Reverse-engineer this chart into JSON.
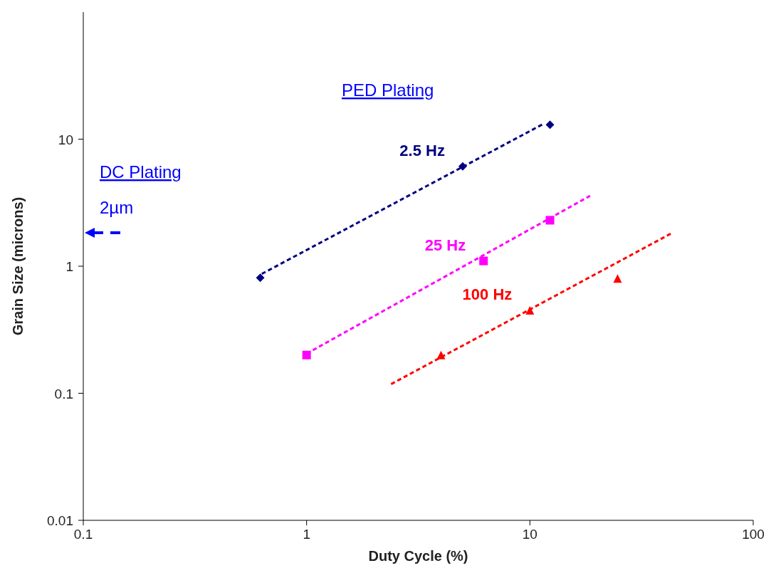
{
  "chart_data": {
    "type": "scatter",
    "xlabel": "Duty Cycle (%)",
    "ylabel": "Grain Size (microns)",
    "log": "xy",
    "xlim": [
      0.1,
      100
    ],
    "xticks": [
      0.1,
      1,
      10,
      100
    ],
    "ylim": [
      0.01,
      100
    ],
    "yticks": [
      0.01,
      0.1,
      1,
      10
    ],
    "grid": false,
    "series": [
      {
        "name": "2.5 Hz",
        "color": "#000080",
        "marker": "diamond",
        "x": [
          0.62,
          5,
          12.3
        ],
        "values": [
          0.81,
          6.1,
          13
        ]
      },
      {
        "name": "25 Hz",
        "color": "#ff00ff",
        "marker": "square",
        "x": [
          1,
          6.2,
          12.3
        ],
        "values": [
          0.2,
          1.1,
          2.3
        ]
      },
      {
        "name": "100 Hz",
        "color": "#ff0000",
        "marker": "triangle",
        "x": [
          4,
          10,
          24.7
        ],
        "values": [
          0.2,
          0.45,
          0.8
        ]
      },
      {
        "type": "line",
        "color": "#000080",
        "line_style": "dashed",
        "marker": "none",
        "x": [
          0.63,
          11.6
        ],
        "values": [
          0.87,
          13.3
        ]
      },
      {
        "type": "line",
        "color": "#ff00ff",
        "line_style": "dashed",
        "marker": "none",
        "x": [
          1,
          18.6
        ],
        "values": [
          0.205,
          3.58
        ]
      },
      {
        "type": "line",
        "color": "#ff0000",
        "line_style": "dashed",
        "marker": "none",
        "x": [
          2.39,
          43.4
        ],
        "values": [
          0.118,
          1.83
        ]
      }
    ],
    "annotations": [
      "PED Plating",
      "DC Plating",
      "2µm"
    ]
  }
}
